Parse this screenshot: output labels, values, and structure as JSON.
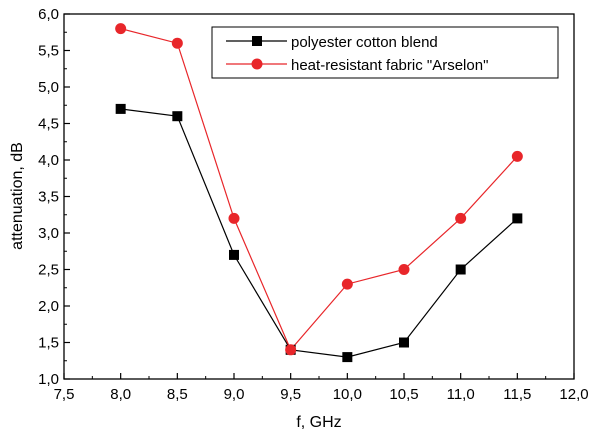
{
  "chart_data": {
    "type": "line",
    "xlabel": "f, GHz",
    "ylabel": "attenuation, dB",
    "xlim": [
      7.5,
      12.0
    ],
    "ylim": [
      1.0,
      6.0
    ],
    "x_ticks": [
      "7,5",
      "8,0",
      "8,5",
      "9,0",
      "9,5",
      "10,0",
      "10,5",
      "11,0",
      "11,5",
      "12,0"
    ],
    "y_ticks": [
      "1,0",
      "1,5",
      "2,0",
      "2,5",
      "3,0",
      "3,5",
      "4,0",
      "4,5",
      "5,0",
      "5,5",
      "6,0"
    ],
    "x": [
      8.0,
      8.5,
      9.0,
      9.5,
      10.0,
      10.5,
      11.0,
      11.5
    ],
    "grid": false,
    "legend_position": "top-right",
    "series": [
      {
        "name": "polyester cotton blend",
        "color": "#000000",
        "marker": "square",
        "values": [
          4.7,
          4.6,
          2.7,
          1.4,
          1.3,
          1.5,
          2.5,
          3.2
        ]
      },
      {
        "name": "heat-resistant fabric \"Arselon\"",
        "color": "#e8262a",
        "marker": "circle",
        "values": [
          5.8,
          5.6,
          3.2,
          1.4,
          2.3,
          2.5,
          3.2,
          4.05
        ]
      }
    ]
  }
}
